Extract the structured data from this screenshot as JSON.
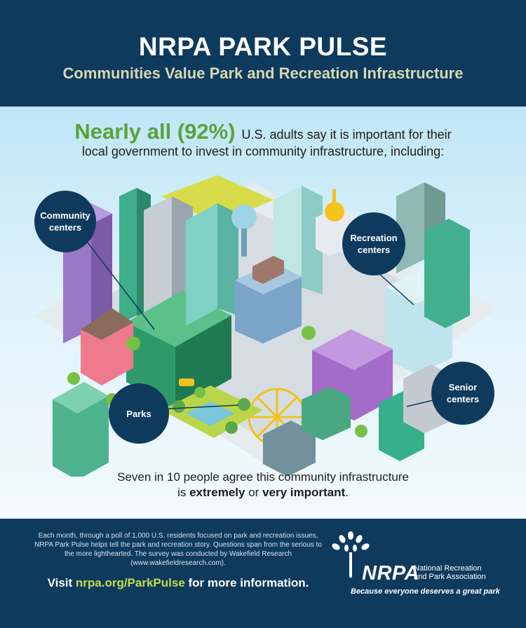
{
  "header": {
    "title": "NRPA PARK PULSE",
    "subtitle": "Communities Value Park and Recreation Infrastructure"
  },
  "stat": {
    "highlight": "Nearly all (92%)",
    "line1": "U.S. adults say it is important for their",
    "line2": "local government to invest in community infrastructure, including:",
    "percent": 92
  },
  "callouts": {
    "community": [
      "Community",
      "centers"
    ],
    "recreation": [
      "Recreation",
      "centers"
    ],
    "parks": "Parks",
    "senior": [
      "Senior",
      "centers"
    ]
  },
  "agree": {
    "line1": "Seven in 10 people agree this community infrastructure",
    "pre": "is",
    "extremely": "extremely",
    "or": "or",
    "very": "very important",
    "end": "."
  },
  "footer": {
    "about": "Each month, through a poll of 1,000 U.S. residents focused on park and recreation issues, NRPA Park Pulse helps tell the park and recreation story. Questions span from the serious to the more lighthearted. The survey was conducted by Wakefield Research (www.wakefieldresearch.com).",
    "visit_pre": "Visit",
    "visit_link": "nrpa.org/ParkPulse",
    "visit_post": "for more information."
  },
  "logo": {
    "name": "NRPA",
    "org_line1": "National Recreation",
    "org_line2": "and Park Association",
    "tagline": "Because everyone deserves a great park"
  },
  "colors": {
    "navy": "#0e3a5e",
    "accent_green": "#5aa339",
    "subtitle": "#d8d8b0",
    "link": "#c6dc4a"
  }
}
